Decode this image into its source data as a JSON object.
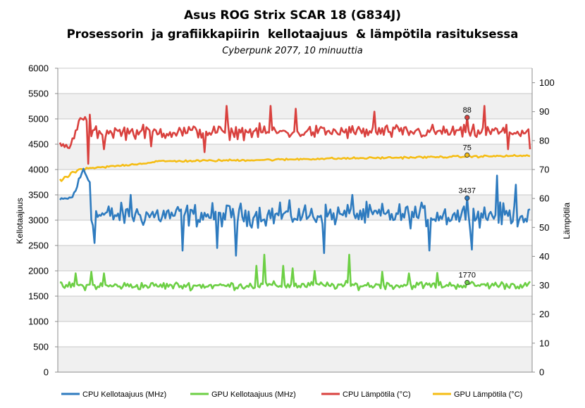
{
  "chart_data": {
    "type": "line",
    "title": "Asus ROG Strix SCAR 18 (G834J)",
    "subtitle": "Prosessorin  ja grafiikkapiirin  kellotaajuus  & lämpötila rasituksessa",
    "caption": "Cyberpunk 2077, 10 minuuttia",
    "ylabel": "Kellotaajuus",
    "y2label": "Lämpötila",
    "ylim": [
      0,
      6000
    ],
    "y2lim": [
      0,
      105
    ],
    "yticks": [
      "0",
      "500",
      "1000",
      "1500",
      "2000",
      "2500",
      "3000",
      "3500",
      "4000",
      "4500",
      "5000",
      "5500",
      "6000"
    ],
    "y2ticks": [
      "0",
      "10",
      "20",
      "30",
      "40",
      "50",
      "60",
      "70",
      "80",
      "90",
      "100"
    ],
    "grid": true,
    "legend_position": "bottom",
    "x_points": 300,
    "series": [
      {
        "name": "CPU Kellotaajuus (MHz)",
        "axis": "left",
        "color": "#2e7bbf",
        "segments": [
          {
            "from": 0,
            "to": 8,
            "start": 3400,
            "end": 3450,
            "noise": 50
          },
          {
            "from": 8,
            "to": 15,
            "start": 3450,
            "end": 4000,
            "noise": 120
          },
          {
            "from": 15,
            "to": 20,
            "start": 4000,
            "end": 3700,
            "noise": 150
          },
          {
            "from": 20,
            "to": 300,
            "start": 3100,
            "end": 3100,
            "noise": 330
          }
        ],
        "spikes": [
          [
            22,
            2550
          ],
          [
            45,
            3500
          ],
          [
            78,
            2400
          ],
          [
            100,
            2450
          ],
          [
            112,
            2300
          ],
          [
            140,
            3350
          ],
          [
            168,
            2350
          ],
          [
            186,
            3500
          ],
          [
            235,
            2400
          ],
          [
            262,
            2420
          ],
          [
            278,
            3880
          ],
          [
            290,
            3700
          ]
        ],
        "annotation": {
          "index": 259,
          "value": 3437,
          "label": "3437"
        }
      },
      {
        "name": "GPU Kellotaajuus (MHz)",
        "axis": "left",
        "color": "#6ccf44",
        "segments": [
          {
            "from": 0,
            "to": 300,
            "start": 1700,
            "end": 1720,
            "noise": 110
          }
        ],
        "spikes": [
          [
            10,
            1950
          ],
          [
            20,
            1980
          ],
          [
            28,
            1950
          ],
          [
            125,
            2100
          ],
          [
            130,
            2320
          ],
          [
            142,
            2100
          ],
          [
            148,
            2050
          ],
          [
            162,
            2000
          ],
          [
            184,
            2320
          ],
          [
            205,
            1980
          ],
          [
            222,
            1950
          ],
          [
            240,
            1960
          ]
        ],
        "annotation": {
          "index": 259,
          "value": 1770,
          "label": "1770"
        }
      },
      {
        "name": "CPU Lämpötila (°C)",
        "axis": "right",
        "color": "#d9413e",
        "segments": [
          {
            "from": 0,
            "to": 6,
            "start": 79,
            "end": 77,
            "noise": 1.5
          },
          {
            "from": 6,
            "to": 12,
            "start": 77,
            "end": 86,
            "noise": 2
          },
          {
            "from": 12,
            "to": 20,
            "start": 87,
            "end": 88,
            "noise": 1.5
          },
          {
            "from": 20,
            "to": 300,
            "start": 83,
            "end": 83,
            "noise": 3.5
          }
        ],
        "spikes": [
          [
            18,
            72
          ],
          [
            28,
            77
          ],
          [
            58,
            78
          ],
          [
            92,
            76
          ],
          [
            106,
            92
          ],
          [
            134,
            92
          ],
          [
            150,
            91
          ],
          [
            200,
            90
          ],
          [
            270,
            92
          ],
          [
            285,
            77
          ],
          [
            299,
            77
          ]
        ],
        "annotation": {
          "index": 259,
          "value": 88,
          "label": "88"
        }
      },
      {
        "name": "GPU Lämpötila (°C)",
        "axis": "right",
        "color": "#f5bd14",
        "segments": [
          {
            "from": 0,
            "to": 12,
            "start": 66,
            "end": 70,
            "noise": 0.8
          },
          {
            "from": 12,
            "to": 60,
            "start": 70,
            "end": 72.5,
            "noise": 0.5
          },
          {
            "from": 60,
            "to": 150,
            "start": 72.8,
            "end": 73.5,
            "noise": 0.5
          },
          {
            "from": 150,
            "to": 300,
            "start": 73.6,
            "end": 74.8,
            "noise": 0.5
          }
        ],
        "spikes": [],
        "annotation": {
          "index": 259,
          "value": 75,
          "label": "75"
        }
      }
    ]
  }
}
